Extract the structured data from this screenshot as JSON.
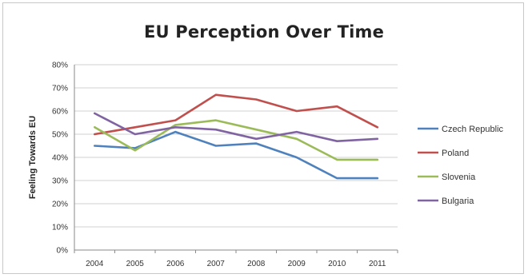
{
  "chart_data": {
    "type": "line",
    "title": "EU Perception Over Time",
    "xlabel": "",
    "ylabel": "Feeling Towards EU",
    "x": [
      "2004",
      "2005",
      "2006",
      "2007",
      "2008",
      "2009",
      "2010",
      "2011"
    ],
    "ylim": [
      0,
      80
    ],
    "yticks": [
      0,
      10,
      20,
      30,
      40,
      50,
      60,
      70,
      80
    ],
    "ytick_suffix": "%",
    "grid": true,
    "legend_position": "right",
    "series": [
      {
        "name": "Czech Republic",
        "color": "#4f81bd",
        "values": [
          45,
          44,
          51,
          45,
          46,
          40,
          31,
          31
        ]
      },
      {
        "name": "Poland",
        "color": "#c0504d",
        "values": [
          50,
          53,
          56,
          67,
          65,
          60,
          62,
          53
        ]
      },
      {
        "name": "Slovenia",
        "color": "#9bbb59",
        "values": [
          53,
          43,
          54,
          56,
          52,
          48,
          39,
          39
        ]
      },
      {
        "name": "Bulgaria",
        "color": "#8064a2",
        "values": [
          59,
          50,
          53,
          52,
          48,
          51,
          47,
          48
        ]
      }
    ]
  }
}
